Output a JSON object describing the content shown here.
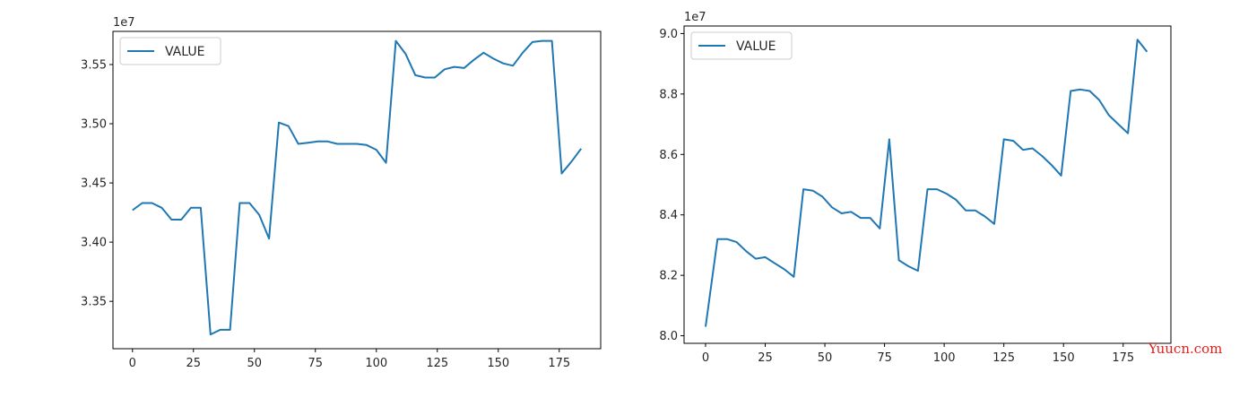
{
  "chart_data": [
    {
      "type": "line",
      "xlim": [
        -8,
        192
      ],
      "ylim": [
        33100000,
        35780000
      ],
      "xticks": [
        0,
        25,
        50,
        75,
        100,
        125,
        150,
        175
      ],
      "xtick_labels": [
        "0",
        "25",
        "50",
        "75",
        "100",
        "125",
        "150",
        "175"
      ],
      "yticks": [
        33500000,
        34000000,
        34500000,
        35000000,
        35500000
      ],
      "ytick_labels": [
        "3.35",
        "3.40",
        "3.45",
        "3.50",
        "3.55"
      ],
      "offset_label": "1e7",
      "legend_position": "upper-left",
      "grid": false,
      "series": [
        {
          "name": "VALUE",
          "color": "#1f77b4",
          "x": [
            0,
            4,
            8,
            12,
            16,
            20,
            24,
            28,
            32,
            36,
            40,
            44,
            48,
            52,
            56,
            60,
            64,
            68,
            72,
            76,
            80,
            84,
            88,
            92,
            96,
            100,
            104,
            108,
            112,
            116,
            120,
            124,
            128,
            132,
            136,
            140,
            144,
            148,
            152,
            156,
            160,
            164,
            168,
            172,
            176,
            180,
            184
          ],
          "y": [
            34270000,
            34330000,
            34330000,
            34290000,
            34190000,
            34190000,
            34290000,
            34290000,
            33220000,
            33260000,
            33260000,
            34330000,
            34330000,
            34230000,
            34030000,
            35010000,
            34980000,
            34830000,
            34840000,
            34850000,
            34850000,
            34830000,
            34830000,
            34830000,
            34820000,
            34780000,
            34670000,
            35700000,
            35590000,
            35410000,
            35390000,
            35390000,
            35460000,
            35480000,
            35470000,
            35540000,
            35600000,
            35550000,
            35510000,
            35490000,
            35600000,
            35690000,
            35700000,
            35700000,
            34580000,
            34680000,
            34790000
          ]
        }
      ]
    },
    {
      "type": "line",
      "xlim": [
        -9,
        195
      ],
      "ylim": [
        79750000,
        90250000
      ],
      "xticks": [
        0,
        25,
        50,
        75,
        100,
        125,
        150,
        175
      ],
      "xtick_labels": [
        "0",
        "25",
        "50",
        "75",
        "100",
        "125",
        "150",
        "175"
      ],
      "yticks": [
        80000000,
        82000000,
        84000000,
        86000000,
        88000000,
        90000000
      ],
      "ytick_labels": [
        "8.0",
        "8.2",
        "8.4",
        "8.6",
        "8.8",
        "9.0"
      ],
      "offset_label": "1e7",
      "legend_position": "upper-left",
      "grid": false,
      "series": [
        {
          "name": "VALUE",
          "color": "#1f77b4",
          "x": [
            0,
            5,
            9,
            13,
            17,
            21,
            25,
            29,
            33,
            37,
            41,
            45,
            49,
            53,
            57,
            61,
            65,
            69,
            73,
            77,
            81,
            85,
            89,
            93,
            97,
            101,
            105,
            109,
            113,
            117,
            121,
            125,
            129,
            133,
            137,
            141,
            145,
            149,
            153,
            157,
            161,
            165,
            169,
            173,
            177,
            181,
            185
          ],
          "y": [
            80300000,
            83200000,
            83200000,
            83100000,
            82800000,
            82550000,
            82600000,
            82400000,
            82200000,
            81950000,
            84850000,
            84800000,
            84600000,
            84250000,
            84050000,
            84100000,
            83900000,
            83900000,
            83550000,
            86500000,
            82500000,
            82300000,
            82150000,
            84850000,
            84850000,
            84700000,
            84500000,
            84150000,
            84150000,
            83950000,
            83700000,
            86500000,
            86450000,
            86150000,
            86200000,
            85950000,
            85650000,
            85300000,
            88100000,
            88150000,
            88100000,
            87800000,
            87300000,
            87000000,
            86700000,
            89800000,
            89400000
          ]
        }
      ]
    }
  ],
  "watermark": "Yuucn.com"
}
